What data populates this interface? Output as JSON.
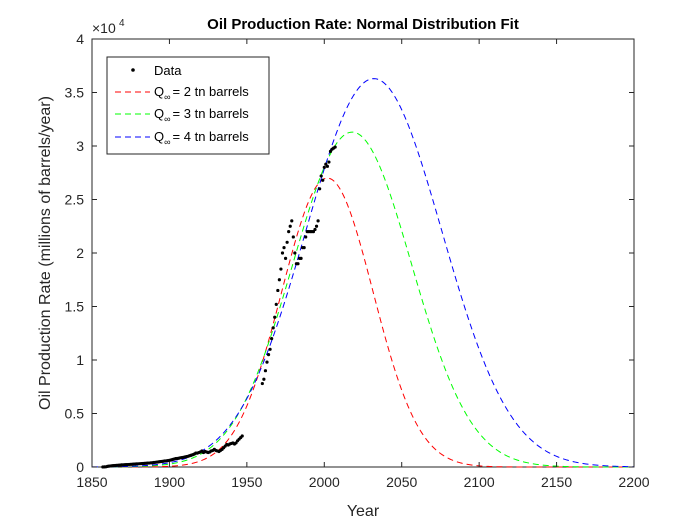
{
  "chart_data": {
    "type": "line",
    "title": "Oil Production Rate: Normal Distribution Fit",
    "xlabel": "Year",
    "ylabel": "Oil Production Rate (millions of barrels/year)",
    "xlim": [
      1850,
      2200
    ],
    "ylim": [
      0,
      40000
    ],
    "y_exponent_label": {
      "base": "×10",
      "exp": "4"
    },
    "x_ticks": [
      1850,
      1900,
      1950,
      2000,
      2050,
      2100,
      2150,
      2200
    ],
    "x_tick_labels": [
      "1850",
      "1900",
      "1950",
      "2000",
      "2050",
      "2100",
      "2150",
      "2200"
    ],
    "y_ticks": [
      0,
      5000,
      10000,
      15000,
      20000,
      25000,
      30000,
      35000,
      40000
    ],
    "y_tick_labels": [
      "0",
      "0.5",
      "1",
      "1.5",
      "2",
      "2.5",
      "3",
      "3.5",
      "4"
    ],
    "legend_position": "top-left",
    "grid": false,
    "data_series": {
      "name": "Data",
      "color": "#000000",
      "points": [
        [
          1857,
          5
        ],
        [
          1858,
          10
        ],
        [
          1859,
          20
        ],
        [
          1860,
          60
        ],
        [
          1861,
          80
        ],
        [
          1862,
          100
        ],
        [
          1863,
          120
        ],
        [
          1864,
          130
        ],
        [
          1865,
          140
        ],
        [
          1866,
          160
        ],
        [
          1867,
          170
        ],
        [
          1868,
          180
        ],
        [
          1869,
          200
        ],
        [
          1870,
          200
        ],
        [
          1871,
          210
        ],
        [
          1872,
          220
        ],
        [
          1873,
          230
        ],
        [
          1874,
          240
        ],
        [
          1875,
          250
        ],
        [
          1876,
          260
        ],
        [
          1877,
          270
        ],
        [
          1878,
          280
        ],
        [
          1879,
          300
        ],
        [
          1880,
          300
        ],
        [
          1881,
          310
        ],
        [
          1882,
          320
        ],
        [
          1883,
          330
        ],
        [
          1884,
          340
        ],
        [
          1885,
          350
        ],
        [
          1886,
          360
        ],
        [
          1887,
          370
        ],
        [
          1888,
          390
        ],
        [
          1889,
          400
        ],
        [
          1890,
          420
        ],
        [
          1891,
          440
        ],
        [
          1892,
          460
        ],
        [
          1893,
          480
        ],
        [
          1894,
          500
        ],
        [
          1895,
          520
        ],
        [
          1896,
          540
        ],
        [
          1897,
          560
        ],
        [
          1898,
          580
        ],
        [
          1899,
          600
        ],
        [
          1900,
          620
        ],
        [
          1901,
          660
        ],
        [
          1902,
          700
        ],
        [
          1903,
          740
        ],
        [
          1904,
          780
        ],
        [
          1905,
          800
        ],
        [
          1906,
          820
        ],
        [
          1907,
          860
        ],
        [
          1908,
          880
        ],
        [
          1909,
          900
        ],
        [
          1910,
          940
        ],
        [
          1911,
          970
        ],
        [
          1912,
          1000
        ],
        [
          1913,
          1050
        ],
        [
          1914,
          1100
        ],
        [
          1915,
          1150
        ],
        [
          1916,
          1200
        ],
        [
          1917,
          1300
        ],
        [
          1918,
          1300
        ],
        [
          1919,
          1350
        ],
        [
          1920,
          1400
        ],
        [
          1921,
          1500
        ],
        [
          1922,
          1350
        ],
        [
          1923,
          1450
        ],
        [
          1924,
          1400
        ],
        [
          1925,
          1350
        ],
        [
          1926,
          1400
        ],
        [
          1927,
          1500
        ],
        [
          1928,
          1550
        ],
        [
          1929,
          1650
        ],
        [
          1930,
          1550
        ],
        [
          1931,
          1500
        ],
        [
          1932,
          1450
        ],
        [
          1933,
          1550
        ],
        [
          1934,
          1650
        ],
        [
          1935,
          1800
        ],
        [
          1936,
          1950
        ],
        [
          1937,
          2100
        ],
        [
          1938,
          2050
        ],
        [
          1939,
          2150
        ],
        [
          1940,
          2200
        ],
        [
          1941,
          2250
        ],
        [
          1942,
          2150
        ],
        [
          1943,
          2250
        ],
        [
          1944,
          2450
        ],
        [
          1945,
          2600
        ],
        [
          1946,
          2750
        ],
        [
          1947,
          2900
        ],
        [
          1960,
          7800
        ],
        [
          1961,
          8200
        ],
        [
          1962,
          9000
        ],
        [
          1963,
          9800
        ],
        [
          1964,
          10500
        ],
        [
          1965,
          11000
        ],
        [
          1966,
          12000
        ],
        [
          1967,
          13000
        ],
        [
          1968,
          14000
        ],
        [
          1969,
          15200
        ],
        [
          1970,
          16500
        ],
        [
          1971,
          17500
        ],
        [
          1972,
          18500
        ],
        [
          1973,
          20000
        ],
        [
          1974,
          20500
        ],
        [
          1975,
          19500
        ],
        [
          1976,
          21000
        ],
        [
          1977,
          22000
        ],
        [
          1978,
          22500
        ],
        [
          1979,
          23000
        ],
        [
          1980,
          21500
        ],
        [
          1981,
          20000
        ],
        [
          1982,
          19000
        ],
        [
          1983,
          19000
        ],
        [
          1984,
          19500
        ],
        [
          1985,
          19500
        ],
        [
          1986,
          20500
        ],
        [
          1987,
          20500
        ],
        [
          1988,
          21500
        ],
        [
          1989,
          22000
        ],
        [
          1990,
          22000
        ],
        [
          1991,
          22000
        ],
        [
          1992,
          22000
        ],
        [
          1993,
          22000
        ],
        [
          1994,
          22200
        ],
        [
          1995,
          22500
        ],
        [
          1996,
          23000
        ],
        [
          1997,
          26000
        ],
        [
          1998,
          27200
        ],
        [
          1999,
          26800
        ],
        [
          2000,
          28000
        ],
        [
          2001,
          28300
        ],
        [
          2002,
          28100
        ],
        [
          2003,
          28500
        ],
        [
          2004,
          29500
        ],
        [
          2005,
          29700
        ],
        [
          2006,
          29800
        ],
        [
          2007,
          29900
        ]
      ]
    },
    "fit_series": [
      {
        "name": "Q∞ = 2 tn barrels",
        "label_main": "Q",
        "label_sub": "∞",
        "label_rest": "= 2 tn barrels",
        "color": "#ff0000",
        "peak_x": 2002,
        "peak_y": 27000,
        "sigma": 29.5
      },
      {
        "name": "Q∞ = 3 tn barrels",
        "label_main": "Q",
        "label_sub": "∞",
        "label_rest": "= 3 tn barrels",
        "color": "#00ff00",
        "peak_x": 2018,
        "peak_y": 31300,
        "sigma": 38.3
      },
      {
        "name": "Q∞ = 4 tn barrels",
        "label_main": "Q",
        "label_sub": "∞",
        "label_rest": "= 4 tn barrels",
        "color": "#0000ff",
        "peak_x": 2032,
        "peak_y": 36300,
        "sigma": 44.0
      }
    ]
  }
}
